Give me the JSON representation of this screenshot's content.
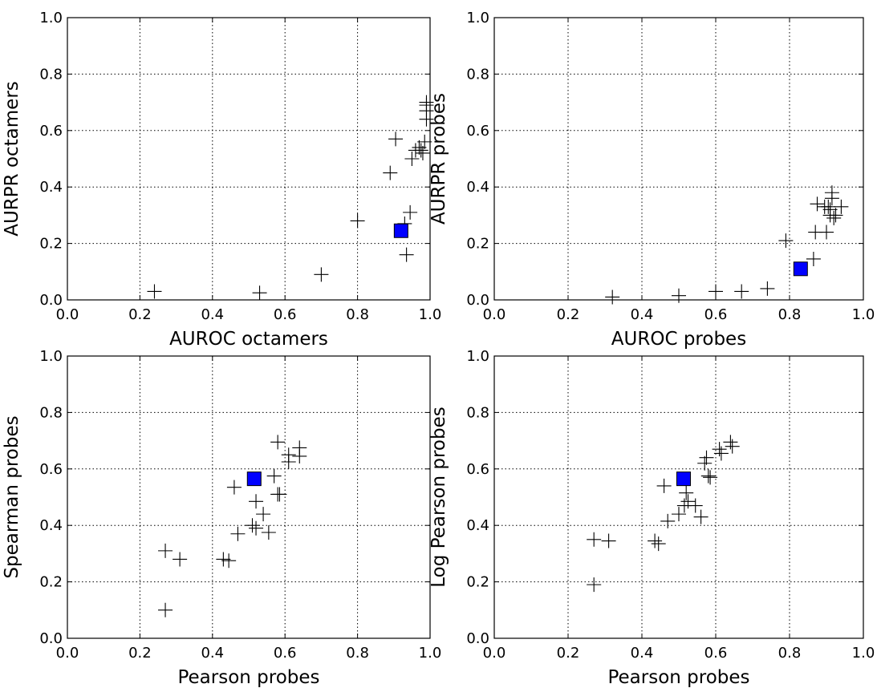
{
  "colors": {
    "marker": "#000000",
    "highlight": "#0000ff",
    "grid": "#000000",
    "background": "#ffffff"
  },
  "chart_data": [
    {
      "type": "scatter",
      "xlabel": "AUROC octamers",
      "ylabel": "AURPR octamers",
      "xlim": [
        0.0,
        1.0
      ],
      "ylim": [
        0.0,
        1.0
      ],
      "grid": true,
      "xticks": [
        "0.0",
        "0.2",
        "0.4",
        "0.6",
        "0.8",
        "1.0"
      ],
      "yticks": [
        "0.0",
        "0.2",
        "0.4",
        "0.6",
        "0.8",
        "1.0"
      ],
      "series": [
        {
          "marker": "plus",
          "points": [
            [
              0.24,
              0.03
            ],
            [
              0.53,
              0.025
            ],
            [
              0.7,
              0.09
            ],
            [
              0.8,
              0.28
            ],
            [
              0.89,
              0.45
            ],
            [
              0.905,
              0.57
            ],
            [
              0.93,
              0.27
            ],
            [
              0.935,
              0.16
            ],
            [
              0.945,
              0.31
            ],
            [
              0.95,
              0.5
            ],
            [
              0.96,
              0.53
            ],
            [
              0.97,
              0.54
            ],
            [
              0.975,
              0.53
            ],
            [
              0.98,
              0.52
            ],
            [
              0.985,
              0.56
            ],
            [
              0.99,
              0.7
            ],
            [
              0.99,
              0.69
            ],
            [
              0.99,
              0.67
            ],
            [
              0.99,
              0.64
            ]
          ]
        },
        {
          "marker": "square",
          "points": [
            [
              0.92,
              0.245
            ]
          ]
        }
      ]
    },
    {
      "type": "scatter",
      "xlabel": "AUROC probes",
      "ylabel": "AURPR probes",
      "xlim": [
        0.0,
        1.0
      ],
      "ylim": [
        0.0,
        1.0
      ],
      "grid": true,
      "xticks": [
        "0.0",
        "0.2",
        "0.4",
        "0.6",
        "0.8",
        "1.0"
      ],
      "yticks": [
        "0.0",
        "0.2",
        "0.4",
        "0.6",
        "0.8",
        "1.0"
      ],
      "series": [
        {
          "marker": "plus",
          "points": [
            [
              0.32,
              0.01
            ],
            [
              0.5,
              0.015
            ],
            [
              0.6,
              0.03
            ],
            [
              0.67,
              0.03
            ],
            [
              0.74,
              0.04
            ],
            [
              0.79,
              0.21
            ],
            [
              0.865,
              0.145
            ],
            [
              0.87,
              0.24
            ],
            [
              0.875,
              0.34
            ],
            [
              0.895,
              0.33
            ],
            [
              0.9,
              0.24
            ],
            [
              0.905,
              0.33
            ],
            [
              0.91,
              0.32
            ],
            [
              0.91,
              0.3
            ],
            [
              0.915,
              0.38
            ],
            [
              0.915,
              0.36
            ],
            [
              0.92,
              0.29
            ],
            [
              0.925,
              0.3
            ],
            [
              0.94,
              0.33
            ]
          ]
        },
        {
          "marker": "square",
          "points": [
            [
              0.83,
              0.11
            ]
          ]
        }
      ]
    },
    {
      "type": "scatter",
      "xlabel": "Pearson probes",
      "ylabel": "Spearman probes",
      "xlim": [
        0.0,
        1.0
      ],
      "ylim": [
        0.0,
        1.0
      ],
      "grid": true,
      "xticks": [
        "0.0",
        "0.2",
        "0.4",
        "0.6",
        "0.8",
        "1.0"
      ],
      "yticks": [
        "0.0",
        "0.2",
        "0.4",
        "0.6",
        "0.8",
        "1.0"
      ],
      "series": [
        {
          "marker": "plus",
          "points": [
            [
              0.27,
              0.31
            ],
            [
              0.27,
              0.1
            ],
            [
              0.31,
              0.28
            ],
            [
              0.43,
              0.28
            ],
            [
              0.445,
              0.275
            ],
            [
              0.46,
              0.535
            ],
            [
              0.47,
              0.37
            ],
            [
              0.51,
              0.4
            ],
            [
              0.52,
              0.39
            ],
            [
              0.52,
              0.485
            ],
            [
              0.54,
              0.44
            ],
            [
              0.555,
              0.375
            ],
            [
              0.57,
              0.575
            ],
            [
              0.58,
              0.695
            ],
            [
              0.58,
              0.51
            ],
            [
              0.585,
              0.51
            ],
            [
              0.61,
              0.65
            ],
            [
              0.61,
              0.625
            ],
            [
              0.64,
              0.675
            ],
            [
              0.64,
              0.645
            ]
          ]
        },
        {
          "marker": "square",
          "points": [
            [
              0.515,
              0.565
            ]
          ]
        }
      ]
    },
    {
      "type": "scatter",
      "xlabel": "Pearson probes",
      "ylabel": "Log Pearson probes",
      "xlim": [
        0.0,
        1.0
      ],
      "ylim": [
        0.0,
        1.0
      ],
      "grid": true,
      "xticks": [
        "0.0",
        "0.2",
        "0.4",
        "0.6",
        "0.8",
        "1.0"
      ],
      "yticks": [
        "0.0",
        "0.2",
        "0.4",
        "0.6",
        "0.8",
        "1.0"
      ],
      "series": [
        {
          "marker": "plus",
          "points": [
            [
              0.27,
              0.35
            ],
            [
              0.27,
              0.19
            ],
            [
              0.31,
              0.345
            ],
            [
              0.435,
              0.345
            ],
            [
              0.445,
              0.335
            ],
            [
              0.46,
              0.54
            ],
            [
              0.47,
              0.415
            ],
            [
              0.5,
              0.44
            ],
            [
              0.515,
              0.47
            ],
            [
              0.52,
              0.515
            ],
            [
              0.525,
              0.485
            ],
            [
              0.545,
              0.47
            ],
            [
              0.56,
              0.43
            ],
            [
              0.57,
              0.62
            ],
            [
              0.575,
              0.64
            ],
            [
              0.58,
              0.575
            ],
            [
              0.585,
              0.57
            ],
            [
              0.61,
              0.67
            ],
            [
              0.615,
              0.655
            ],
            [
              0.64,
              0.695
            ],
            [
              0.645,
              0.68
            ]
          ]
        },
        {
          "marker": "square",
          "points": [
            [
              0.513,
              0.565
            ]
          ]
        }
      ]
    }
  ]
}
